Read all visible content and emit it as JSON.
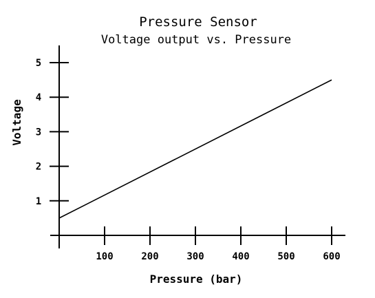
{
  "chart_data": {
    "type": "line",
    "title": "Pressure Sensor",
    "subtitle": "Voltage output vs. Pressure",
    "xlabel": "Pressure (bar)",
    "ylabel": "Voltage",
    "xlim": [
      0,
      600
    ],
    "ylim": [
      0,
      5
    ],
    "xticks": [
      100,
      200,
      300,
      400,
      500,
      600
    ],
    "yticks": [
      1,
      2,
      3,
      4,
      5
    ],
    "grid": false,
    "series": [
      {
        "x": [
          0,
          600
        ],
        "y": [
          0.5,
          4.5
        ]
      }
    ],
    "colors": {
      "line": "#000000",
      "axes": "#000000",
      "background": "#ffffff"
    }
  }
}
